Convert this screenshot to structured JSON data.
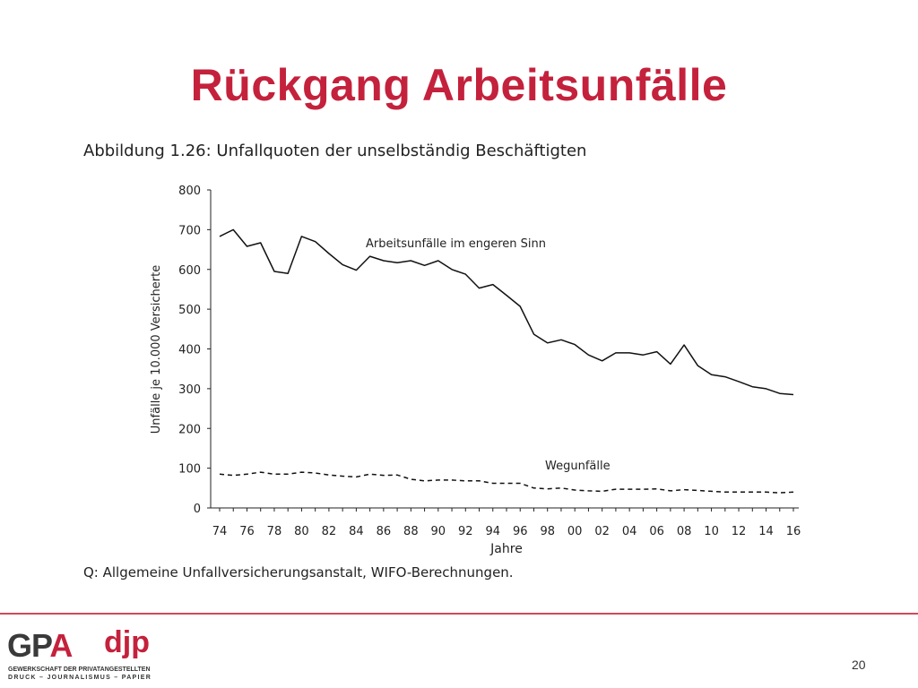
{
  "slide": {
    "title": "Rückgang Arbeitsunfälle",
    "page_number": "20"
  },
  "figure": {
    "caption": "Abbildung 1.26: Unfallquoten der unselbständig Beschäftigten",
    "source": "Q: Allgemeine Unfallversicherungsanstalt, WIFO-Berechnungen."
  },
  "logo": {
    "gpa": "GP",
    "gpa_a": "A",
    "djp": "djp",
    "line1": "GEWERKSCHAFT DER PRIVATANGESTELLTEN",
    "line2": "DRUCK – JOURNALISMUS – PAPIER"
  },
  "colors": {
    "title": "#c4213c",
    "series": "#111111",
    "footer_rule": "#d04a5c"
  },
  "chart_data": {
    "type": "line",
    "title": "",
    "xlabel": "Jahre",
    "ylabel": "Unfälle je 10.000 Versicherte",
    "xlim": [
      1974,
      2016
    ],
    "ylim": [
      0,
      800
    ],
    "yticks": [
      0,
      100,
      200,
      300,
      400,
      500,
      600,
      700,
      800
    ],
    "xticks": [
      1974,
      1976,
      1978,
      1980,
      1982,
      1984,
      1986,
      1988,
      1990,
      1992,
      1994,
      1996,
      1998,
      2000,
      2002,
      2004,
      2006,
      2008,
      2010,
      2012,
      2014,
      2016
    ],
    "xtick_labels": [
      "74",
      "76",
      "78",
      "80",
      "82",
      "84",
      "86",
      "88",
      "90",
      "92",
      "94",
      "96",
      "98",
      "00",
      "02",
      "04",
      "06",
      "08",
      "10",
      "12",
      "14",
      "16"
    ],
    "ytick_labels": [
      "0",
      "100",
      "200",
      "300",
      "400",
      "500",
      "600",
      "700",
      "800"
    ],
    "grid": false,
    "legend": "none",
    "x": [
      1974,
      1975,
      1976,
      1977,
      1978,
      1979,
      1980,
      1981,
      1982,
      1983,
      1984,
      1985,
      1986,
      1987,
      1988,
      1989,
      1990,
      1991,
      1992,
      1993,
      1994,
      1995,
      1996,
      1997,
      1998,
      1999,
      2000,
      2001,
      2002,
      2003,
      2004,
      2005,
      2006,
      2007,
      2008,
      2009,
      2010,
      2011,
      2012,
      2013,
      2014,
      2015,
      2016
    ],
    "series": [
      {
        "name": "Arbeitsunfälle im engeren Sinn",
        "style": "solid",
        "values": [
          683,
          700,
          658,
          667,
          595,
          590,
          683,
          670,
          640,
          612,
          598,
          633,
          622,
          617,
          622,
          610,
          622,
          600,
          588,
          553,
          562,
          535,
          507,
          437,
          415,
          423,
          411,
          385,
          370,
          390,
          390,
          385,
          393,
          362,
          410,
          358,
          335,
          330,
          318,
          305,
          300,
          288,
          285
        ]
      },
      {
        "name": "Wegunfälle",
        "style": "dashed",
        "values": [
          85,
          82,
          85,
          90,
          85,
          85,
          90,
          88,
          83,
          80,
          78,
          85,
          82,
          83,
          72,
          68,
          70,
          70,
          68,
          68,
          62,
          62,
          62,
          50,
          48,
          50,
          45,
          43,
          42,
          47,
          47,
          47,
          48,
          43,
          46,
          44,
          42,
          40,
          40,
          40,
          40,
          38,
          40
        ]
      }
    ]
  }
}
